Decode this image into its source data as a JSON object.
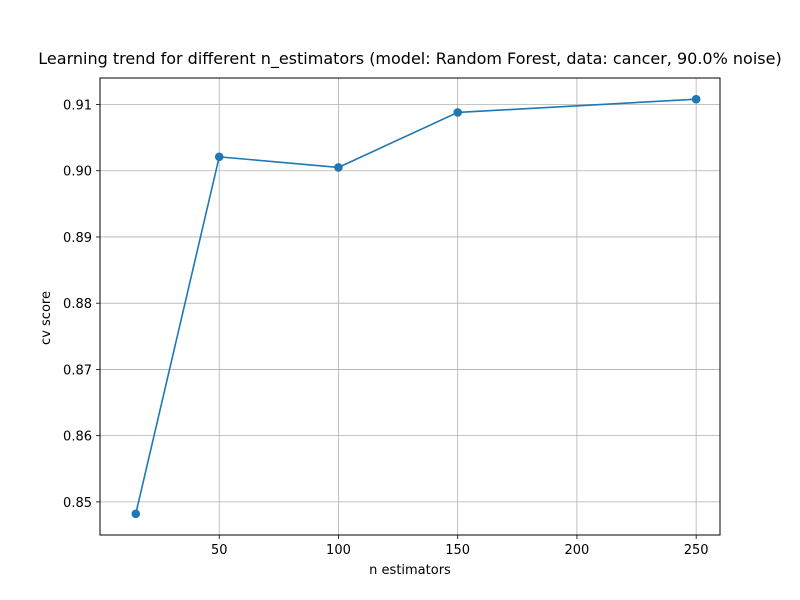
{
  "chart_data": {
    "type": "line",
    "title": "Learning trend for different n_estimators (model: Random Forest, data: cancer, 90.0% noise)",
    "xlabel": "n estimators",
    "ylabel": "cv score",
    "grid": true,
    "xlim": [
      0,
      260
    ],
    "ylim": [
      0.845,
      0.914
    ],
    "xticks": [
      50,
      100,
      150,
      200,
      250
    ],
    "yticks": [
      0.85,
      0.86,
      0.87,
      0.88,
      0.89,
      0.9,
      0.91
    ],
    "xtick_labels": [
      "50",
      "100",
      "150",
      "200",
      "250"
    ],
    "ytick_labels": [
      "0.85",
      "0.86",
      "0.87",
      "0.88",
      "0.89",
      "0.90",
      "0.91"
    ],
    "series": [
      {
        "color": "#1f77b4",
        "marker": "circle",
        "x": [
          15,
          50,
          100,
          150,
          250
        ],
        "y": [
          0.8482,
          0.9021,
          0.9005,
          0.9088,
          0.9108
        ]
      }
    ]
  }
}
